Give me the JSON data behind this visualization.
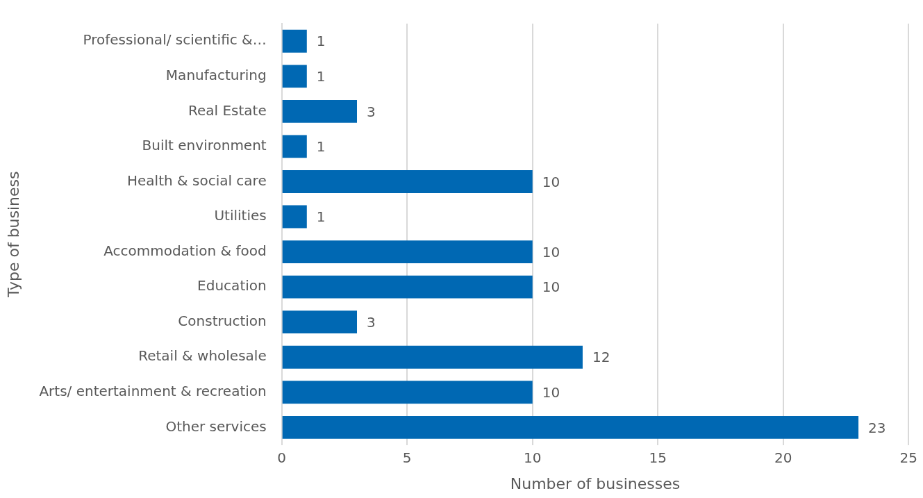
{
  "chart_data": {
    "type": "bar",
    "orientation": "horizontal",
    "xlabel": "Number of businesses",
    "ylabel": "Type of business",
    "categories": [
      "Professional/ scientific &…",
      "Manufacturing",
      "Real Estate",
      "Built environment",
      "Health & social care",
      "Utilities",
      "Accommodation & food",
      "Education",
      "Construction",
      "Retail & wholesale",
      "Arts/ entertainment & recreation",
      "Other services"
    ],
    "values": [
      1,
      1,
      3,
      1,
      10,
      1,
      10,
      10,
      3,
      12,
      10,
      23
    ],
    "color": "#0068b3",
    "xlim": [
      0,
      25
    ],
    "xticks": [
      0,
      5,
      10,
      15,
      20,
      25
    ],
    "grid": "x",
    "data_labels": true,
    "legend": false
  }
}
